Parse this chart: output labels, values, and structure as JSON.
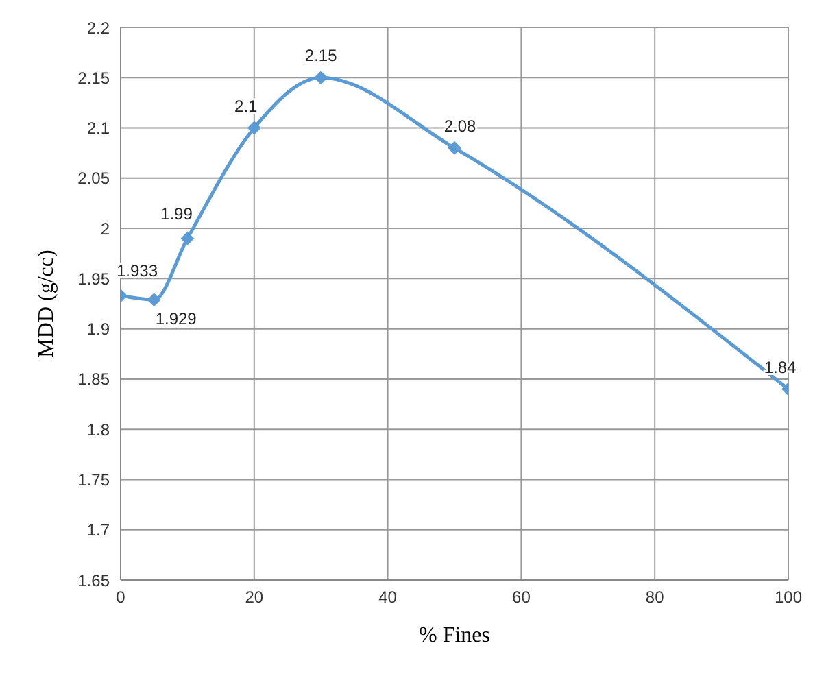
{
  "chart_data": {
    "type": "line",
    "xlabel": "% Fines",
    "ylabel": "MDD (g/cc)",
    "x": [
      0,
      5,
      10,
      20,
      30,
      50,
      100
    ],
    "series": [
      {
        "color": "#5b9bd5",
        "values": [
          1.933,
          1.929,
          1.99,
          2.1,
          2.15,
          2.08,
          1.84
        ]
      }
    ],
    "xlim": [
      0,
      100
    ],
    "xticks": [
      0,
      20,
      40,
      60,
      80,
      100
    ],
    "ylim": [
      1.65,
      2.2
    ],
    "yticks": [
      1.65,
      1.7,
      1.75,
      1.8,
      1.85,
      1.9,
      1.95,
      2,
      2.05,
      2.1,
      2.15,
      2.2
    ],
    "grid": true,
    "legend": false,
    "marker": "diamond",
    "line_style": "solid",
    "data_labels": true
  }
}
